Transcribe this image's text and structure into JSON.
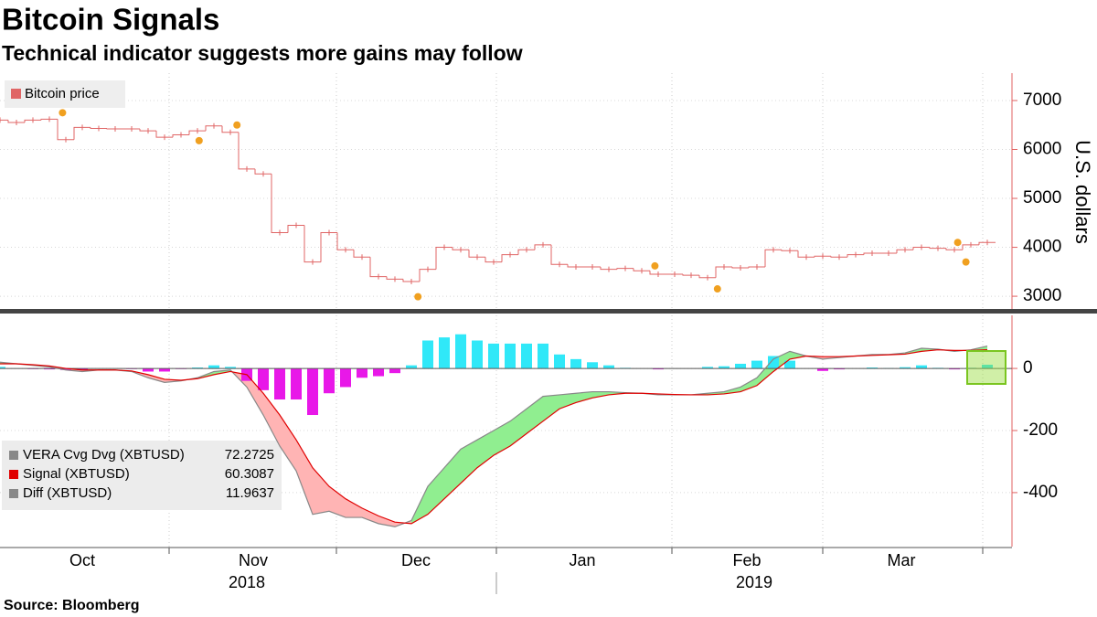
{
  "title": "Bitcoin Signals",
  "subtitle": "Technical indicator suggests more gains may follow",
  "source": "Source: Bloomberg",
  "time_axis": {
    "months": [
      "Oct",
      "Nov",
      "Dec",
      "Jan",
      "Feb",
      "Mar"
    ],
    "years": [
      "2018",
      "2019"
    ]
  },
  "chart_data": [
    {
      "type": "step",
      "series": [
        {
          "name": "Bitcoin price",
          "color": "#e06666",
          "values": [
            6600,
            6550,
            6600,
            6620,
            6200,
            6450,
            6430,
            6420,
            6420,
            6380,
            6250,
            6300,
            6380,
            6480,
            6350,
            5600,
            5500,
            4300,
            4450,
            3700,
            4300,
            3950,
            3800,
            3400,
            3350,
            3300,
            3550,
            4000,
            3950,
            3800,
            3700,
            3850,
            3950,
            4050,
            3650,
            3600,
            3600,
            3550,
            3570,
            3520,
            3450,
            3450,
            3430,
            3380,
            3600,
            3580,
            3600,
            3950,
            3930,
            3800,
            3820,
            3800,
            3850,
            3880,
            3880,
            3950,
            4000,
            3980,
            3950,
            4050,
            4100
          ]
        }
      ],
      "signals": {
        "color": "#f0a020",
        "x": [
          3.8,
          12.1,
          14.4,
          25.4,
          39.8,
          43.6,
          58.2,
          58.7
        ],
        "values": [
          6750,
          6180,
          6500,
          2990,
          3620,
          3150,
          4100,
          3700
        ]
      },
      "ylim": [
        2740,
        7560
      ],
      "yticks": [
        3000,
        4000,
        5000,
        6000,
        7000
      ],
      "y_label": "U.S. dollars",
      "grid": true
    },
    {
      "type": "oscillator",
      "series": [
        {
          "name": "VERA Cvg Dvg (XBTUSD)",
          "color": "#888888",
          "values": [
            20,
            15,
            10,
            5,
            -5,
            -10,
            -5,
            -5,
            -10,
            -30,
            -45,
            -40,
            -30,
            -10,
            -5,
            -60,
            -150,
            -250,
            -330,
            -470,
            -460,
            -480,
            -480,
            -500,
            -510,
            -490,
            -380,
            -320,
            -260,
            -230,
            -200,
            -170,
            -130,
            -90,
            -85,
            -80,
            -75,
            -75,
            -78,
            -80,
            -85,
            -85,
            -85,
            -80,
            -75,
            -60,
            -30,
            30,
            55,
            40,
            30,
            35,
            40,
            45,
            45,
            50,
            65,
            62,
            55,
            60,
            72.2725
          ]
        },
        {
          "name": "Signal (XBTUSD)",
          "color": "#e00000",
          "values": [
            15,
            15,
            12,
            8,
            0,
            -5,
            -5,
            -5,
            -8,
            -20,
            -35,
            -38,
            -33,
            -20,
            -10,
            -20,
            -80,
            -150,
            -230,
            -320,
            -380,
            -420,
            -450,
            -475,
            -495,
            -500,
            -470,
            -420,
            -370,
            -320,
            -280,
            -250,
            -210,
            -170,
            -130,
            -110,
            -95,
            -85,
            -80,
            -80,
            -82,
            -84,
            -85,
            -85,
            -82,
            -75,
            -55,
            -10,
            30,
            40,
            38,
            38,
            40,
            42,
            44,
            46,
            55,
            60,
            58,
            58,
            60.3087
          ]
        },
        {
          "name": "Diff (XBTUSD)",
          "color": "#888888",
          "positive_color": "#30e8f8",
          "negative_color": "#e818e8",
          "values": [
            5,
            0,
            -2,
            -3,
            -5,
            -5,
            0,
            0,
            -2,
            -10,
            -10,
            -2,
            3,
            10,
            5,
            -40,
            -70,
            -100,
            -100,
            -150,
            -80,
            -60,
            -30,
            -25,
            -15,
            10,
            90,
            100,
            110,
            90,
            80,
            80,
            80,
            80,
            45,
            30,
            20,
            10,
            2,
            0,
            -3,
            -1,
            0,
            5,
            7,
            15,
            25,
            40,
            25,
            0,
            -8,
            -3,
            0,
            3,
            1,
            4,
            10,
            2,
            -3,
            2,
            11.9637
          ]
        }
      ],
      "above_color": "#90ee90",
      "below_color": "#ffb4b4",
      "ylim": [
        -574,
        171
      ],
      "yticks": [
        -400,
        -200,
        0
      ],
      "grid": true
    }
  ]
}
